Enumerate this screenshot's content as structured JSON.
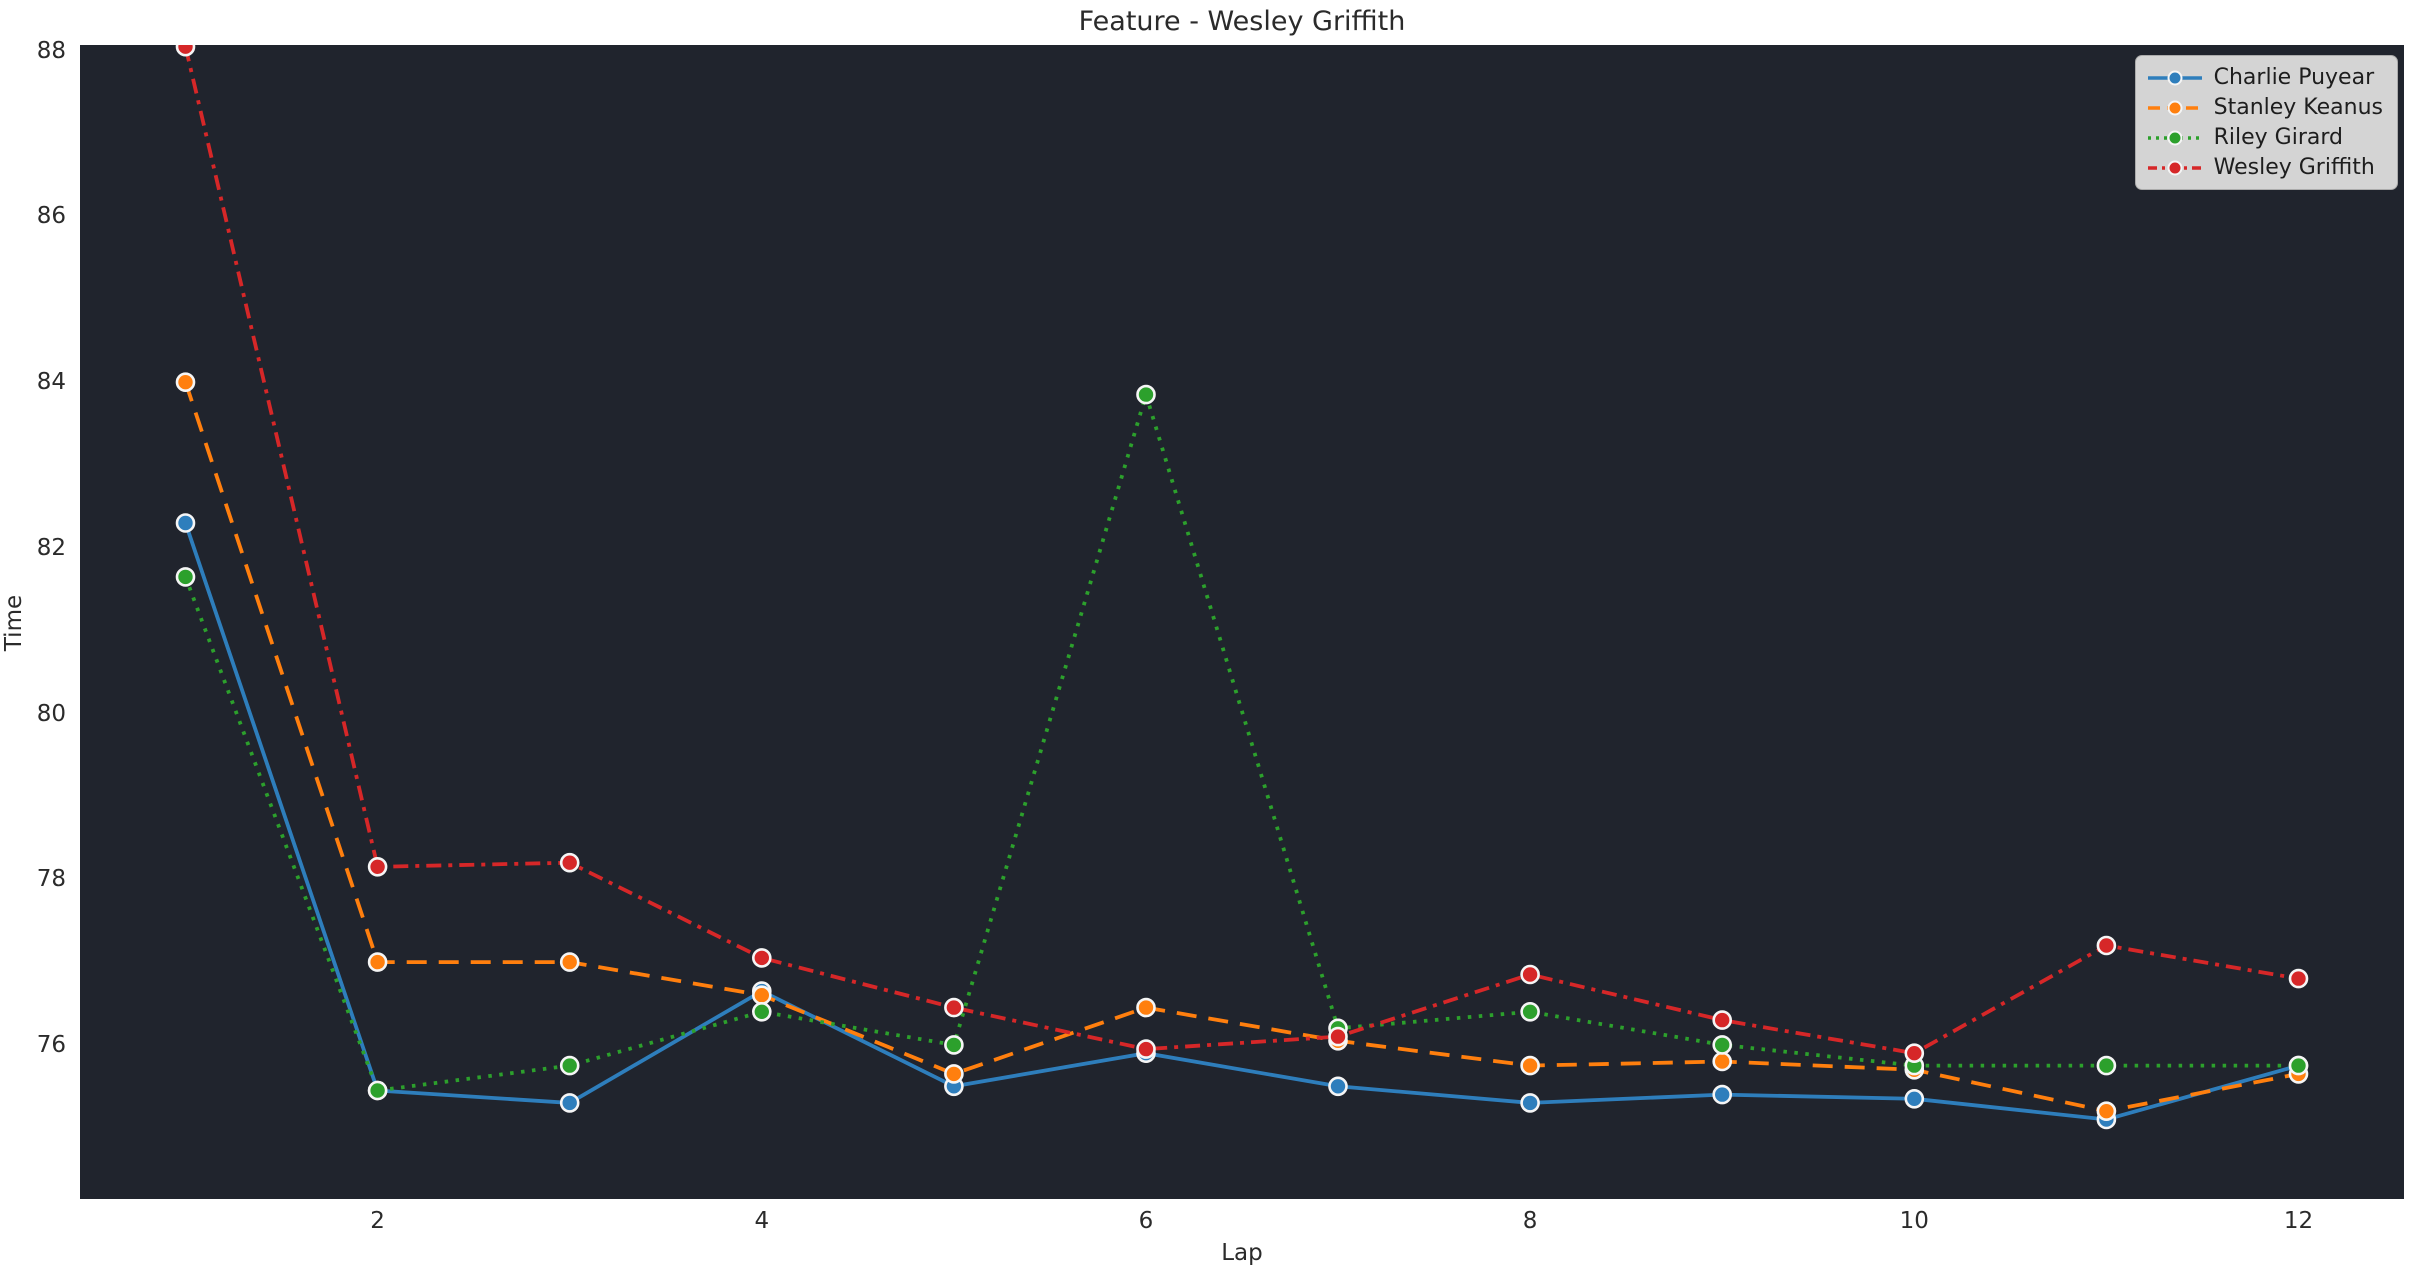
{
  "figure": {
    "title": "Feature - Wesley Griffith",
    "xlabel": "Lap",
    "ylabel": "Time"
  },
  "colors": {
    "figure_background": "#ffffff",
    "axes_background": "#20242d",
    "text": "#2b2b2b",
    "legend_background": "#d4d4d4",
    "marker_edge": "#f5f5f5",
    "blue": "#2e7ebc",
    "orange": "#ff7f0e",
    "green": "#2ca02c",
    "red": "#d62728"
  },
  "chart_data": {
    "type": "line",
    "title": "Feature - Wesley Griffith",
    "xlabel": "Lap",
    "ylabel": "Time",
    "x": [
      1,
      2,
      3,
      4,
      5,
      6,
      7,
      8,
      9,
      10,
      11,
      12
    ],
    "xticks": [
      2,
      4,
      6,
      8,
      10,
      12
    ],
    "yticks": [
      76,
      78,
      80,
      82,
      84,
      86,
      88
    ],
    "ylim": [
      74.14,
      88.07
    ],
    "x_margin_frac": 0.0454,
    "grid": false,
    "legend_position": "upper right",
    "series": [
      {
        "name": "Charlie Puyear",
        "color": "#2e7ebc",
        "line_style": "solid",
        "values": [
          82.3,
          75.45,
          75.3,
          76.65,
          75.5,
          75.9,
          75.5,
          75.3,
          75.4,
          75.35,
          75.1,
          75.75
        ]
      },
      {
        "name": "Stanley Keanus",
        "color": "#ff7f0e",
        "line_style": "dashed",
        "values": [
          84.0,
          77.0,
          77.0,
          76.6,
          75.65,
          76.45,
          76.05,
          75.75,
          75.8,
          75.7,
          75.2,
          75.65
        ]
      },
      {
        "name": "Riley Girard",
        "color": "#2ca02c",
        "line_style": "dotted",
        "values": [
          81.65,
          75.45,
          75.75,
          76.4,
          76.0,
          83.85,
          76.2,
          76.4,
          76.0,
          75.75,
          75.75,
          75.75
        ]
      },
      {
        "name": "Wesley Griffith",
        "color": "#d62728",
        "line_style": "dashdot",
        "values": [
          88.05,
          78.15,
          78.2,
          77.05,
          76.45,
          75.95,
          76.1,
          76.85,
          76.3,
          75.9,
          77.2,
          76.8
        ]
      }
    ]
  }
}
